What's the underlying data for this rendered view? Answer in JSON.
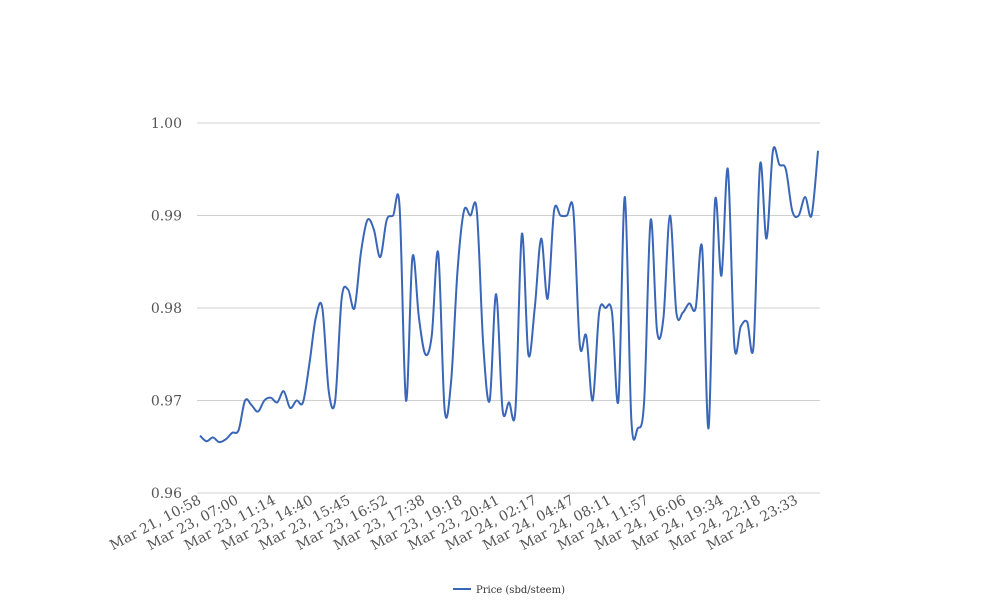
{
  "chart_data": {
    "type": "line",
    "title": "",
    "xlabel": "",
    "ylabel": "",
    "ylim": [
      0.96,
      1.0
    ],
    "yticks": [
      "0.96",
      "0.97",
      "0.98",
      "0.99",
      "1.00"
    ],
    "grid": true,
    "legend_position": "bottom",
    "x_tick_labels": [
      "Mar 21, 10:58",
      "Mar 23, 07:00",
      "Mar 23, 11:14",
      "Mar 23, 14:40",
      "Mar 23, 15:45",
      "Mar 23, 16:52",
      "Mar 23, 17:38",
      "Mar 23, 19:18",
      "Mar 23, 20:41",
      "Mar 24, 02:17",
      "Mar 24, 04:47",
      "Mar 24, 08:11",
      "Mar 24, 11:57",
      "Mar 24, 16:06",
      "Mar 24, 19:34",
      "Mar 24, 22:18",
      "Mar 24, 23:33"
    ],
    "series": [
      {
        "name": "Price (sbd/steem)",
        "color": "#3a66b8",
        "values": [
          0.9662,
          0.9656,
          0.966,
          0.9655,
          0.9658,
          0.9665,
          0.9668,
          0.97,
          0.9695,
          0.9688,
          0.97,
          0.9703,
          0.9698,
          0.971,
          0.9692,
          0.97,
          0.9698,
          0.974,
          0.979,
          0.98,
          0.971,
          0.97,
          0.981,
          0.982,
          0.98,
          0.986,
          0.9895,
          0.9885,
          0.9855,
          0.9895,
          0.99,
          0.991,
          0.97,
          0.9855,
          0.979,
          0.975,
          0.977,
          0.986,
          0.969,
          0.972,
          0.984,
          0.9905,
          0.99,
          0.9905,
          0.976,
          0.97,
          0.9815,
          0.969,
          0.9698,
          0.969,
          0.988,
          0.975,
          0.98,
          0.9875,
          0.981,
          0.9905,
          0.99,
          0.99,
          0.9905,
          0.976,
          0.977,
          0.97,
          0.9795,
          0.98,
          0.9795,
          0.97,
          0.992,
          0.968,
          0.967,
          0.97,
          0.9895,
          0.9775,
          0.979,
          0.99,
          0.9795,
          0.9795,
          0.9805,
          0.98,
          0.9865,
          0.967,
          0.9915,
          0.9835,
          0.995,
          0.976,
          0.978,
          0.9785,
          0.976,
          0.9955,
          0.9875,
          0.997,
          0.9955,
          0.995,
          0.9905,
          0.99,
          0.992,
          0.99,
          0.997
        ]
      }
    ]
  }
}
